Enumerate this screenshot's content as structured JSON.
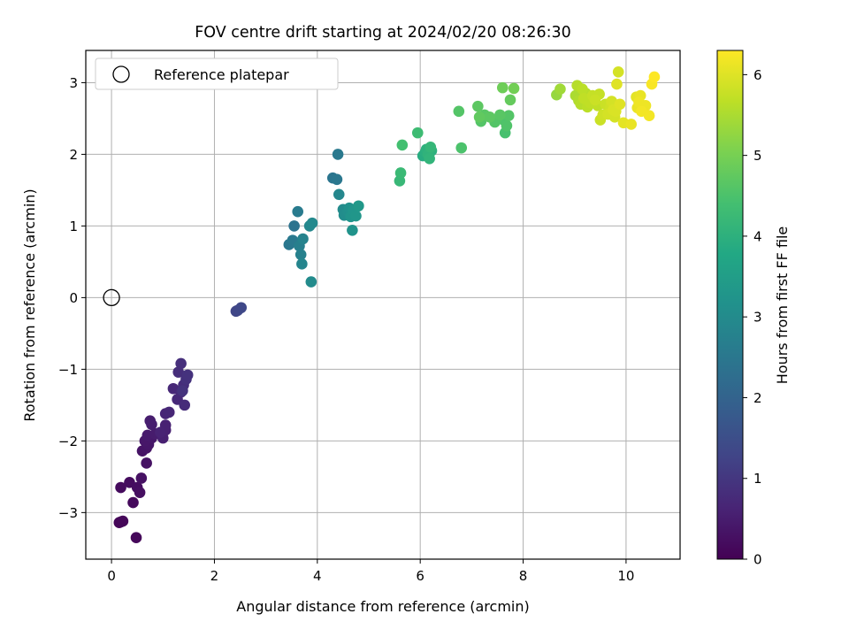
{
  "chart_data": {
    "type": "scatter",
    "title": "FOV centre drift starting at 2024/02/20 08:26:30",
    "xlabel": "Angular distance from reference (arcmin)",
    "ylabel": "Rotation from reference (arcmin)",
    "xlim": [
      -0.5,
      11.05
    ],
    "ylim": [
      -3.65,
      3.45
    ],
    "x_ticks": [
      0,
      2,
      4,
      6,
      8,
      10
    ],
    "y_ticks": [
      -3,
      -2,
      -1,
      0,
      1,
      2,
      3
    ],
    "grid": true,
    "legend": {
      "position": "top-left",
      "entries": [
        {
          "label": "Reference platepar",
          "marker": "open-circle",
          "x": 0,
          "y": 0
        }
      ]
    },
    "colorbar": {
      "label": "Hours from first FF file",
      "colormap": "viridis",
      "range": [
        0,
        6.3
      ],
      "ticks": [
        0,
        1,
        2,
        3,
        4,
        5,
        6
      ]
    },
    "points": [
      {
        "x": 0.18,
        "y": -3.13,
        "c": 0.05
      },
      {
        "x": 0.15,
        "y": -3.14,
        "c": 0.08
      },
      {
        "x": 0.22,
        "y": -3.12,
        "c": 0.1
      },
      {
        "x": 0.48,
        "y": -3.35,
        "c": 0.12
      },
      {
        "x": 0.42,
        "y": -2.86,
        "c": 0.15
      },
      {
        "x": 0.18,
        "y": -2.65,
        "c": 0.18
      },
      {
        "x": 0.35,
        "y": -2.58,
        "c": 0.2
      },
      {
        "x": 0.5,
        "y": -2.65,
        "c": 0.22
      },
      {
        "x": 0.55,
        "y": -2.72,
        "c": 0.25
      },
      {
        "x": 0.58,
        "y": -2.52,
        "c": 0.28
      },
      {
        "x": 0.68,
        "y": -2.31,
        "c": 0.3
      },
      {
        "x": 0.6,
        "y": -2.14,
        "c": 0.33
      },
      {
        "x": 0.68,
        "y": -2.1,
        "c": 0.35
      },
      {
        "x": 0.72,
        "y": -2.05,
        "c": 0.38
      },
      {
        "x": 0.65,
        "y": -2.0,
        "c": 0.4
      },
      {
        "x": 0.78,
        "y": -1.96,
        "c": 0.42
      },
      {
        "x": 0.7,
        "y": -1.92,
        "c": 0.45
      },
      {
        "x": 0.85,
        "y": -1.9,
        "c": 0.48
      },
      {
        "x": 0.75,
        "y": -1.72,
        "c": 0.5
      },
      {
        "x": 0.78,
        "y": -1.77,
        "c": 0.52
      },
      {
        "x": 1.0,
        "y": -1.96,
        "c": 0.55
      },
      {
        "x": 1.05,
        "y": -1.85,
        "c": 0.58
      },
      {
        "x": 1.05,
        "y": -1.78,
        "c": 0.6
      },
      {
        "x": 0.95,
        "y": -1.88,
        "c": 0.62
      },
      {
        "x": 1.05,
        "y": -1.62,
        "c": 0.65
      },
      {
        "x": 1.12,
        "y": -1.6,
        "c": 0.68
      },
      {
        "x": 1.2,
        "y": -1.27,
        "c": 0.7
      },
      {
        "x": 1.28,
        "y": -1.42,
        "c": 0.72
      },
      {
        "x": 1.35,
        "y": -1.32,
        "c": 0.75
      },
      {
        "x": 1.42,
        "y": -1.5,
        "c": 0.78
      },
      {
        "x": 1.4,
        "y": -1.22,
        "c": 0.8
      },
      {
        "x": 1.3,
        "y": -1.04,
        "c": 0.82
      },
      {
        "x": 1.35,
        "y": -0.92,
        "c": 0.85
      },
      {
        "x": 1.45,
        "y": -1.14,
        "c": 0.88
      },
      {
        "x": 1.48,
        "y": -1.08,
        "c": 0.9
      },
      {
        "x": 1.38,
        "y": -1.3,
        "c": 0.92
      },
      {
        "x": 2.42,
        "y": -0.19,
        "c": 1.3
      },
      {
        "x": 2.52,
        "y": -0.14,
        "c": 1.35
      },
      {
        "x": 2.45,
        "y": -0.18,
        "c": 1.32
      },
      {
        "x": 3.45,
        "y": 0.74,
        "c": 2.5
      },
      {
        "x": 3.52,
        "y": 0.8,
        "c": 2.55
      },
      {
        "x": 3.55,
        "y": 1.0,
        "c": 2.4
      },
      {
        "x": 3.62,
        "y": 1.2,
        "c": 2.6
      },
      {
        "x": 3.65,
        "y": 0.72,
        "c": 2.7
      },
      {
        "x": 3.68,
        "y": 0.6,
        "c": 2.75
      },
      {
        "x": 3.72,
        "y": 0.82,
        "c": 2.8
      },
      {
        "x": 3.7,
        "y": 0.47,
        "c": 2.85
      },
      {
        "x": 3.85,
        "y": 1.0,
        "c": 2.9
      },
      {
        "x": 3.9,
        "y": 1.04,
        "c": 2.95
      },
      {
        "x": 3.88,
        "y": 0.22,
        "c": 3.0
      },
      {
        "x": 4.3,
        "y": 1.67,
        "c": 2.45
      },
      {
        "x": 4.38,
        "y": 1.65,
        "c": 2.5
      },
      {
        "x": 4.4,
        "y": 2.0,
        "c": 2.55
      },
      {
        "x": 4.42,
        "y": 1.44,
        "c": 2.9
      },
      {
        "x": 4.5,
        "y": 1.23,
        "c": 3.0
      },
      {
        "x": 4.52,
        "y": 1.15,
        "c": 3.05
      },
      {
        "x": 4.6,
        "y": 1.2,
        "c": 3.1
      },
      {
        "x": 4.62,
        "y": 1.25,
        "c": 3.15
      },
      {
        "x": 4.68,
        "y": 0.94,
        "c": 3.2
      },
      {
        "x": 4.65,
        "y": 1.13,
        "c": 3.22
      },
      {
        "x": 4.7,
        "y": 1.22,
        "c": 3.25
      },
      {
        "x": 4.75,
        "y": 1.14,
        "c": 3.3
      },
      {
        "x": 4.8,
        "y": 1.28,
        "c": 3.35
      },
      {
        "x": 5.6,
        "y": 1.63,
        "c": 4.2
      },
      {
        "x": 5.62,
        "y": 1.74,
        "c": 4.25
      },
      {
        "x": 5.65,
        "y": 2.13,
        "c": 4.4
      },
      {
        "x": 5.95,
        "y": 2.3,
        "c": 4.3
      },
      {
        "x": 6.05,
        "y": 1.98,
        "c": 3.9
      },
      {
        "x": 6.1,
        "y": 2.03,
        "c": 3.95
      },
      {
        "x": 6.12,
        "y": 2.07,
        "c": 4.0
      },
      {
        "x": 6.15,
        "y": 2.0,
        "c": 4.05
      },
      {
        "x": 6.18,
        "y": 1.94,
        "c": 4.1
      },
      {
        "x": 6.2,
        "y": 2.1,
        "c": 4.15
      },
      {
        "x": 6.22,
        "y": 2.05,
        "c": 4.0
      },
      {
        "x": 6.75,
        "y": 2.6,
        "c": 4.6
      },
      {
        "x": 6.8,
        "y": 2.09,
        "c": 4.5
      },
      {
        "x": 7.12,
        "y": 2.67,
        "c": 4.7
      },
      {
        "x": 7.15,
        "y": 2.52,
        "c": 4.75
      },
      {
        "x": 7.18,
        "y": 2.46,
        "c": 4.6
      },
      {
        "x": 7.25,
        "y": 2.55,
        "c": 4.65
      },
      {
        "x": 7.35,
        "y": 2.52,
        "c": 4.7
      },
      {
        "x": 7.45,
        "y": 2.45,
        "c": 4.6
      },
      {
        "x": 7.5,
        "y": 2.49,
        "c": 4.55
      },
      {
        "x": 7.55,
        "y": 2.55,
        "c": 4.65
      },
      {
        "x": 7.6,
        "y": 2.93,
        "c": 4.9
      },
      {
        "x": 7.62,
        "y": 2.48,
        "c": 4.5
      },
      {
        "x": 7.65,
        "y": 2.3,
        "c": 4.45
      },
      {
        "x": 7.68,
        "y": 2.4,
        "c": 4.55
      },
      {
        "x": 7.72,
        "y": 2.54,
        "c": 4.6
      },
      {
        "x": 7.75,
        "y": 2.76,
        "c": 4.8
      },
      {
        "x": 7.82,
        "y": 2.92,
        "c": 4.95
      },
      {
        "x": 8.65,
        "y": 2.83,
        "c": 5.3
      },
      {
        "x": 8.72,
        "y": 2.91,
        "c": 5.4
      },
      {
        "x": 9.02,
        "y": 2.82,
        "c": 5.5
      },
      {
        "x": 9.05,
        "y": 2.96,
        "c": 5.6
      },
      {
        "x": 9.08,
        "y": 2.75,
        "c": 5.55
      },
      {
        "x": 9.12,
        "y": 2.7,
        "c": 5.6
      },
      {
        "x": 9.15,
        "y": 2.91,
        "c": 5.65
      },
      {
        "x": 9.18,
        "y": 2.78,
        "c": 5.7
      },
      {
        "x": 9.22,
        "y": 2.85,
        "c": 5.6
      },
      {
        "x": 9.25,
        "y": 2.66,
        "c": 5.65
      },
      {
        "x": 9.3,
        "y": 2.72,
        "c": 5.7
      },
      {
        "x": 9.35,
        "y": 2.82,
        "c": 5.75
      },
      {
        "x": 9.4,
        "y": 2.76,
        "c": 5.8
      },
      {
        "x": 9.45,
        "y": 2.68,
        "c": 5.7
      },
      {
        "x": 9.48,
        "y": 2.84,
        "c": 5.75
      },
      {
        "x": 9.5,
        "y": 2.48,
        "c": 5.8
      },
      {
        "x": 9.55,
        "y": 2.55,
        "c": 5.85
      },
      {
        "x": 9.6,
        "y": 2.7,
        "c": 5.8
      },
      {
        "x": 9.65,
        "y": 2.56,
        "c": 5.9
      },
      {
        "x": 9.7,
        "y": 2.66,
        "c": 5.85
      },
      {
        "x": 9.72,
        "y": 2.74,
        "c": 5.9
      },
      {
        "x": 9.75,
        "y": 2.62,
        "c": 5.95
      },
      {
        "x": 9.78,
        "y": 2.52,
        "c": 5.9
      },
      {
        "x": 9.8,
        "y": 2.6,
        "c": 5.95
      },
      {
        "x": 9.82,
        "y": 2.98,
        "c": 6.0
      },
      {
        "x": 9.85,
        "y": 3.15,
        "c": 5.9
      },
      {
        "x": 9.88,
        "y": 2.7,
        "c": 6.0
      },
      {
        "x": 9.95,
        "y": 2.44,
        "c": 6.05
      },
      {
        "x": 10.1,
        "y": 2.42,
        "c": 6.1
      },
      {
        "x": 10.2,
        "y": 2.8,
        "c": 6.05
      },
      {
        "x": 10.22,
        "y": 2.65,
        "c": 6.1
      },
      {
        "x": 10.25,
        "y": 2.73,
        "c": 6.15
      },
      {
        "x": 10.28,
        "y": 2.82,
        "c": 6.1
      },
      {
        "x": 10.3,
        "y": 2.6,
        "c": 6.2
      },
      {
        "x": 10.38,
        "y": 2.68,
        "c": 6.15
      },
      {
        "x": 10.45,
        "y": 2.54,
        "c": 6.2
      },
      {
        "x": 10.5,
        "y": 2.98,
        "c": 6.25
      },
      {
        "x": 10.55,
        "y": 3.08,
        "c": 6.3
      }
    ]
  }
}
